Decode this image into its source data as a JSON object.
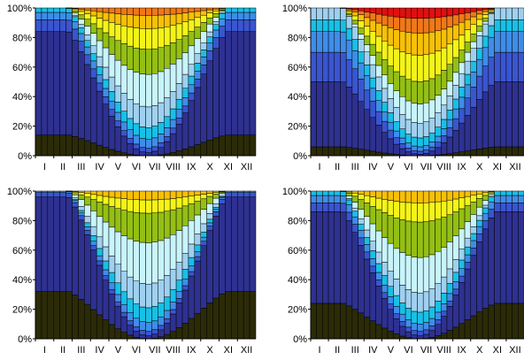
{
  "chart_data": [
    {
      "type": "bar",
      "stacked": "percent",
      "ylim": [
        0,
        100
      ],
      "yticks": [
        "0%",
        "20%",
        "40%",
        "60%",
        "80%",
        "100%"
      ],
      "xticks": [
        "I",
        "II",
        "III",
        "IV",
        "V",
        "VI",
        "VII",
        "VIII",
        "IX",
        "X",
        "XI",
        "XII"
      ],
      "bars_count": 36,
      "grid": false,
      "legend": "none",
      "bands": [
        14,
        70,
        8,
        5,
        3,
        0,
        0,
        0,
        0,
        0,
        0,
        0
      ],
      "bands_summer": [
        0,
        2,
        3,
        6,
        8,
        14,
        22,
        17,
        14,
        9,
        5,
        0
      ]
    },
    {
      "type": "bar",
      "stacked": "percent",
      "ylim": [
        0,
        100
      ],
      "yticks": [
        "0%",
        "20%",
        "40%",
        "60%",
        "80%",
        "100%"
      ],
      "xticks": [
        "I",
        "II",
        "III",
        "IV",
        "V",
        "VI",
        "VII",
        "VIII",
        "IX",
        "X",
        "XI",
        "XII"
      ],
      "bars_count": 36,
      "grid": false,
      "legend": "none",
      "bands": [
        6,
        44,
        20,
        14,
        8,
        8,
        0,
        0,
        0,
        0,
        0,
        0
      ],
      "bands_summer": [
        0,
        1,
        2,
        3,
        6,
        10,
        13,
        15,
        18,
        15,
        10,
        7
      ]
    },
    {
      "type": "bar",
      "stacked": "percent",
      "ylim": [
        0,
        100
      ],
      "yticks": [
        "0%",
        "20%",
        "40%",
        "60%",
        "80%",
        "100%"
      ],
      "xticks": [
        "I",
        "II",
        "III",
        "IV",
        "V",
        "VI",
        "VII",
        "VIII",
        "IX",
        "X",
        "XI",
        "XII"
      ],
      "bars_count": 36,
      "grid": false,
      "legend": "none",
      "bands": [
        32,
        64,
        3,
        1,
        0,
        0,
        0,
        0,
        0,
        0,
        0,
        0
      ],
      "bands_summer": [
        0,
        2,
        3,
        6,
        10,
        16,
        28,
        20,
        9,
        6,
        0,
        0
      ]
    },
    {
      "type": "bar",
      "stacked": "percent",
      "ylim": [
        0,
        100
      ],
      "yticks": [
        "0%",
        "20%",
        "40%",
        "60%",
        "80%",
        "100%"
      ],
      "xticks": [
        "I",
        "II",
        "III",
        "IV",
        "V",
        "VI",
        "VII",
        "VIII",
        "IX",
        "X",
        "XI",
        "XII"
      ],
      "bars_count": 36,
      "grid": false,
      "legend": "none",
      "bands": [
        24,
        62,
        6,
        5,
        3,
        0,
        0,
        0,
        0,
        0,
        0,
        0
      ],
      "bands_summer": [
        0,
        2,
        3,
        5,
        8,
        13,
        24,
        24,
        13,
        8,
        0,
        0
      ]
    }
  ],
  "colors": [
    "#2b2b08",
    "#2e3190",
    "#3a55d0",
    "#3f8de8",
    "#18c0e6",
    "#9fd0f0",
    "#c8f4fc",
    "#94bf14",
    "#f4f418",
    "#f7c008",
    "#f07818",
    "#e01010",
    "#7a0808"
  ]
}
